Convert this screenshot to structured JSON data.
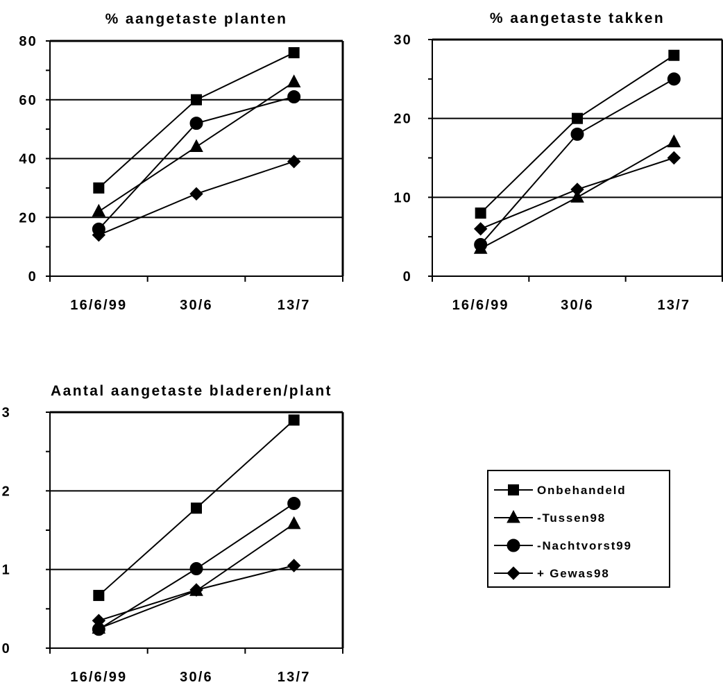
{
  "chart_data": [
    {
      "type": "line",
      "title": "% aangetaste planten",
      "xlabel": "",
      "ylabel": "",
      "categories": [
        "16/6/99",
        "30/6",
        "13/7"
      ],
      "ylim": [
        0,
        80
      ],
      "yticks": [
        0,
        20,
        40,
        60,
        80
      ],
      "grid": true,
      "series": [
        {
          "name": "Onbehandeld",
          "values": [
            30,
            60,
            76
          ]
        },
        {
          "name": "-Tussen98",
          "values": [
            22,
            44,
            66
          ]
        },
        {
          "name": "-Nachtvorst99",
          "values": [
            16,
            52,
            61
          ]
        },
        {
          "name": "+ Gewas98",
          "values": [
            14,
            28,
            39
          ]
        }
      ]
    },
    {
      "type": "line",
      "title": "% aangetaste takken",
      "xlabel": "",
      "ylabel": "",
      "categories": [
        "16/6/99",
        "30/6",
        "13/7"
      ],
      "ylim": [
        0,
        30
      ],
      "yticks": [
        0,
        10,
        20,
        30
      ],
      "grid": true,
      "series": [
        {
          "name": "Onbehandeld",
          "values": [
            8,
            20,
            28
          ]
        },
        {
          "name": "-Tussen98",
          "values": [
            3.5,
            10,
            17
          ]
        },
        {
          "name": "-Nachtvorst99",
          "values": [
            4,
            18,
            25
          ]
        },
        {
          "name": "+ Gewas98",
          "values": [
            6,
            11,
            15
          ]
        }
      ]
    },
    {
      "type": "line",
      "title": "Aantal aangetaste bladeren/plant",
      "xlabel": "",
      "ylabel": "",
      "categories": [
        "16/6/99",
        "30/6",
        "13/7"
      ],
      "ylim": [
        0,
        3
      ],
      "yticks": [
        0,
        1,
        2,
        3
      ],
      "grid": true,
      "series": [
        {
          "name": "Onbehandeld",
          "values": [
            0.67,
            1.78,
            2.9
          ]
        },
        {
          "name": "-Tussen98",
          "values": [
            0.25,
            0.73,
            1.58
          ]
        },
        {
          "name": "-Nachtvorst99",
          "values": [
            0.24,
            1.01,
            1.84
          ]
        },
        {
          "name": "+ Gewas98",
          "values": [
            0.35,
            0.74,
            1.05
          ]
        }
      ]
    }
  ],
  "legend": {
    "placement": "bottom-right",
    "items": [
      {
        "label": "Onbehandeld",
        "marker": "square"
      },
      {
        "label": "-Tussen98",
        "marker": "triangle"
      },
      {
        "label": "-Nachtvorst99",
        "marker": "circle"
      },
      {
        "label": "+ Gewas98",
        "marker": "diamond"
      }
    ]
  },
  "colors": {
    "ink": "#000000",
    "background": "#ffffff"
  }
}
